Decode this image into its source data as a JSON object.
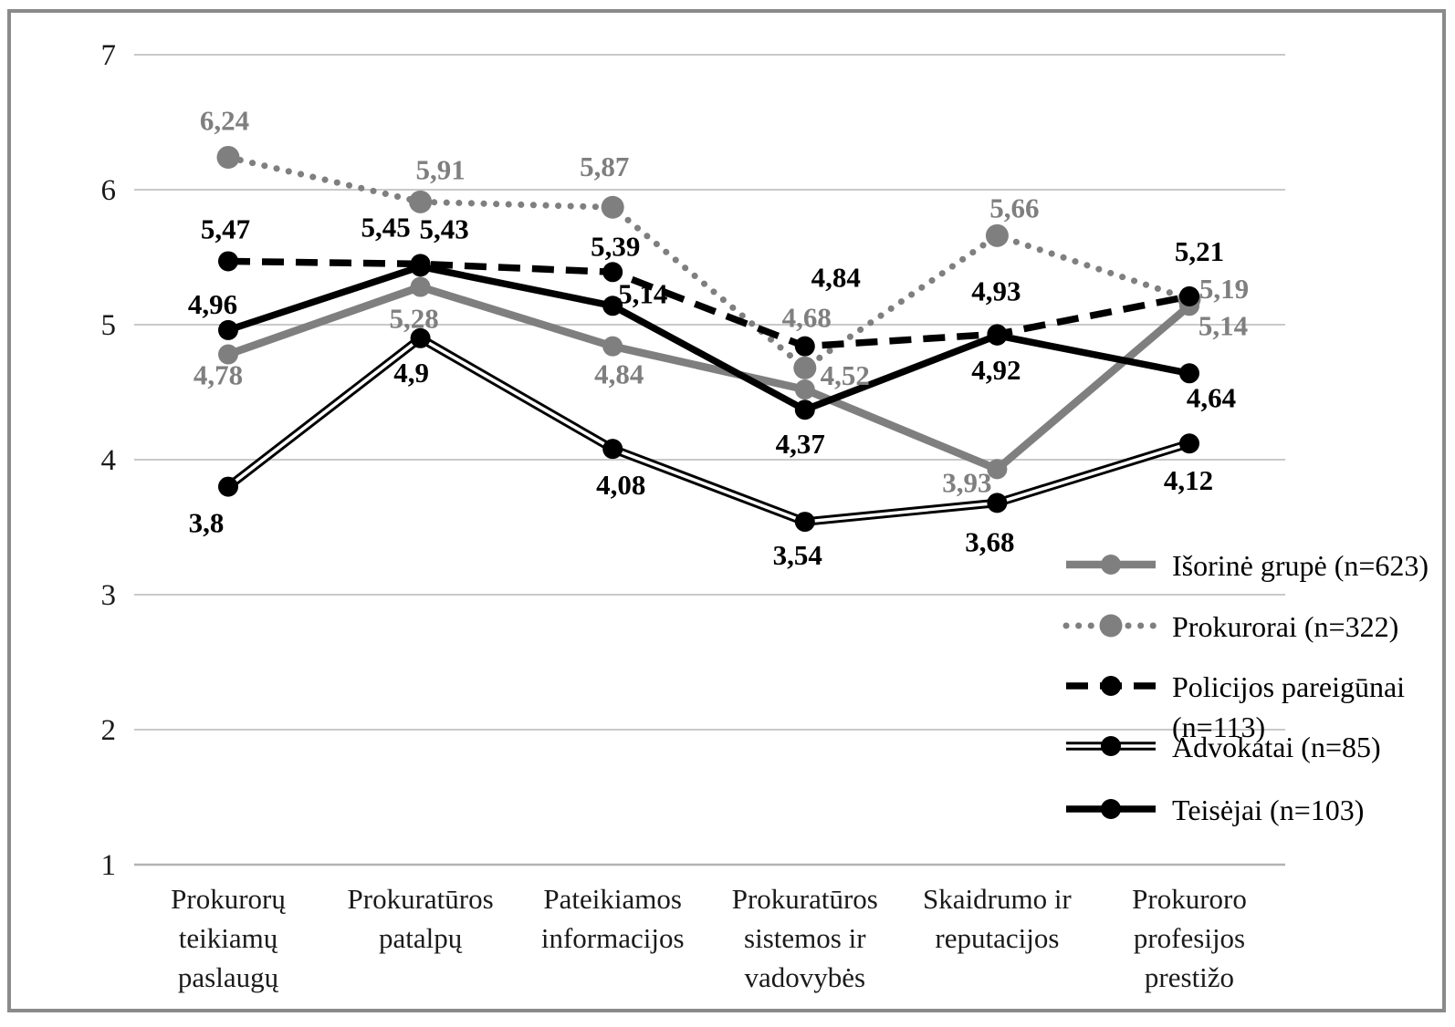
{
  "chart_data": {
    "type": "line",
    "title": "",
    "xlabel": "",
    "ylabel": "",
    "grid": true,
    "y_axis": {
      "min": 1,
      "max": 7,
      "tick_step": 1,
      "ticks": [
        "7",
        "6",
        "5",
        "4",
        "3",
        "2",
        "1"
      ]
    },
    "categories": [
      [
        "Prokurorų",
        "teikiamų",
        "paslaugų"
      ],
      [
        "Prokuratūros",
        "patalpų"
      ],
      [
        "Pateikiamos",
        "informacijos"
      ],
      [
        "Prokuratūros",
        "sistemos ir",
        "vadovybės"
      ],
      [
        "Skaidrumo ir",
        "reputacijos"
      ],
      [
        "Prokuroro",
        "profesijos",
        "prestižo"
      ]
    ],
    "series": [
      {
        "name": "Išorinė grupė (n=623)",
        "line_style": "solid",
        "color": "#7f7f7f",
        "values": [
          4.78,
          5.28,
          4.84,
          4.52,
          3.93,
          5.14
        ],
        "labels": [
          "4,78",
          "5,28",
          "4,84",
          "4,52",
          "3,93",
          "5,14"
        ]
      },
      {
        "name": "Prokurorai (n=322)",
        "line_style": "dotted",
        "color": "#7f7f7f",
        "values": [
          6.24,
          5.91,
          5.87,
          4.68,
          5.66,
          5.19
        ],
        "labels": [
          "6,24",
          "5,91",
          "5,87",
          "4,68",
          "5,66",
          "5,19"
        ]
      },
      {
        "name": "Policijos pareigūnai (n=113)",
        "line_style": "dashed",
        "color": "#000000",
        "values": [
          5.47,
          5.45,
          5.39,
          4.84,
          4.93,
          5.21
        ],
        "labels": [
          "5,47",
          "5,45",
          "5,39",
          "4,84",
          "4,93",
          "5,21"
        ]
      },
      {
        "name": "Advokatai (n=85)",
        "line_style": "double",
        "color": "#000000",
        "values": [
          3.8,
          4.9,
          4.08,
          3.54,
          3.68,
          4.12
        ],
        "labels": [
          "3,8",
          "4,9",
          "4,08",
          "3,54",
          "3,68",
          "4,12"
        ]
      },
      {
        "name": "Teisėjai (n=103)",
        "line_style": "solid",
        "color": "#000000",
        "values": [
          4.96,
          5.43,
          5.14,
          4.37,
          4.92,
          4.64
        ],
        "labels": [
          "4,96",
          "5,43",
          "5,14",
          "4,37",
          "4,92",
          "4,64"
        ]
      }
    ],
    "legend": {
      "position": "right-bottom",
      "entries": [
        {
          "lines": [
            "Išorinė grupė (n=623)"
          ]
        },
        {
          "lines": [
            "Prokurorai (n=322)"
          ]
        },
        {
          "lines": [
            "Policijos pareigūnai",
            "(n=113)"
          ]
        },
        {
          "lines": [
            "Advokatai (n=85)"
          ]
        },
        {
          "lines": [
            "Teisėjai (n=103)"
          ]
        }
      ]
    },
    "colors": {
      "gray_series": "#7f7f7f",
      "black_series": "#000000",
      "gridline": "#c9c9c9",
      "axis_line": "#b3b3b3",
      "frame_border": "#8a8a8a",
      "tick_text": "#1a1a1a",
      "category_text": "#1a1a1a",
      "legend_text": "#000000"
    }
  }
}
